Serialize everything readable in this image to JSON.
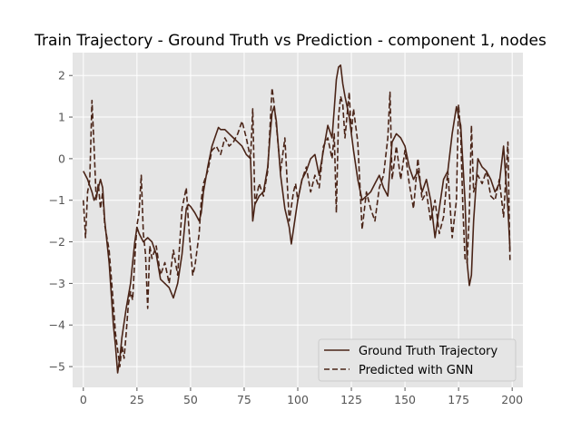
{
  "chart_data": {
    "type": "line",
    "title": "Train Trajectory - Ground Truth vs Prediction - component 1, nodes",
    "xlabel": "",
    "ylabel": "",
    "xlim": [
      -5,
      205
    ],
    "ylim": [
      -5.5,
      2.55
    ],
    "xticks": [
      0,
      25,
      50,
      75,
      100,
      125,
      150,
      175,
      200
    ],
    "yticks": [
      2,
      1,
      0,
      -1,
      -2,
      -3,
      -4,
      -5
    ],
    "grid": true,
    "legend": "lower-right",
    "colors": {
      "line": "#4a2417",
      "plot_bg": "#e5e5e5",
      "grid": "#ffffff"
    },
    "series": [
      {
        "name": "Ground Truth Trajectory",
        "style": "solid",
        "x": [
          0,
          2,
          4,
          5,
          6,
          8,
          9,
          10,
          12,
          14,
          15,
          16,
          17,
          18,
          20,
          22,
          23,
          24,
          25,
          26,
          28,
          30,
          32,
          34,
          36,
          38,
          40,
          42,
          44,
          46,
          48,
          49,
          50,
          52,
          54,
          55,
          56,
          58,
          60,
          62,
          63,
          64,
          66,
          68,
          70,
          72,
          74,
          75,
          76,
          78,
          79,
          80,
          82,
          84,
          86,
          87,
          88,
          89,
          90,
          92,
          94,
          96,
          97,
          98,
          100,
          102,
          104,
          106,
          108,
          110,
          112,
          114,
          116,
          117,
          118,
          119,
          120,
          121,
          122,
          124,
          126,
          128,
          130,
          132,
          134,
          136,
          138,
          140,
          142,
          144,
          146,
          148,
          150,
          152,
          154,
          156,
          158,
          160,
          162,
          164,
          166,
          168,
          170,
          172,
          174,
          176,
          178,
          179,
          180,
          181,
          182,
          184,
          186,
          188,
          190,
          192,
          194,
          196,
          198,
          199
        ],
        "y": [
          -0.3,
          -0.5,
          -0.8,
          -1.0,
          -0.9,
          -0.5,
          -0.7,
          -1.5,
          -2.5,
          -4.0,
          -4.5,
          -5.15,
          -4.8,
          -4.3,
          -3.6,
          -3.0,
          -2.5,
          -2.0,
          -1.65,
          -1.8,
          -2.0,
          -1.9,
          -2.0,
          -2.3,
          -2.9,
          -3.0,
          -3.1,
          -3.35,
          -3.0,
          -2.3,
          -1.2,
          -1.1,
          -1.15,
          -1.3,
          -1.5,
          -1.3,
          -0.8,
          -0.2,
          0.3,
          0.6,
          0.75,
          0.7,
          0.7,
          0.6,
          0.5,
          0.4,
          0.3,
          0.2,
          0.1,
          0.0,
          -1.5,
          -1.1,
          -0.9,
          -0.8,
          -0.2,
          0.5,
          1.1,
          1.25,
          0.9,
          -0.4,
          -1.2,
          -1.65,
          -2.05,
          -1.7,
          -1.0,
          -0.5,
          -0.3,
          0.0,
          0.1,
          -0.4,
          0.2,
          0.8,
          0.5,
          1.2,
          1.9,
          2.2,
          2.25,
          1.8,
          1.5,
          1.0,
          0.2,
          -0.5,
          -1.0,
          -0.9,
          -0.8,
          -0.6,
          -0.4,
          -0.7,
          -0.9,
          0.4,
          0.6,
          0.5,
          0.3,
          -0.2,
          -0.5,
          -0.3,
          -0.8,
          -0.5,
          -1.0,
          -1.9,
          -1.2,
          -0.5,
          -0.3,
          0.6,
          1.25,
          0.8,
          -1.0,
          -2.5,
          -3.05,
          -2.8,
          -1.5,
          0.0,
          -0.2,
          -0.3,
          -0.5,
          -0.8,
          -0.6,
          0.3,
          -1.2,
          -2.2
        ]
      },
      {
        "name": "Predicted with GNN",
        "style": "dashed",
        "x": [
          0,
          1,
          2,
          3,
          4,
          5,
          6,
          7,
          8,
          9,
          10,
          12,
          14,
          15,
          16,
          17,
          18,
          19,
          20,
          21,
          22,
          23,
          24,
          25,
          26,
          27,
          28,
          29,
          30,
          31,
          32,
          34,
          36,
          38,
          40,
          42,
          44,
          46,
          48,
          49,
          50,
          51,
          52,
          54,
          55,
          56,
          58,
          60,
          62,
          64,
          66,
          68,
          70,
          72,
          74,
          76,
          78,
          79,
          80,
          82,
          84,
          86,
          88,
          89,
          90,
          92,
          94,
          96,
          98,
          99,
          100,
          102,
          104,
          106,
          108,
          110,
          112,
          114,
          116,
          117,
          118,
          119,
          120,
          121,
          122,
          124,
          125,
          126,
          128,
          130,
          132,
          134,
          136,
          138,
          140,
          142,
          143,
          144,
          146,
          148,
          150,
          152,
          154,
          156,
          158,
          160,
          162,
          164,
          166,
          168,
          170,
          172,
          174,
          175,
          176,
          177,
          178,
          179,
          180,
          181,
          182,
          184,
          186,
          188,
          190,
          192,
          194,
          196,
          198,
          199
        ],
        "y": [
          -1.0,
          -1.9,
          -0.8,
          -0.5,
          1.4,
          0.3,
          -1.0,
          -0.6,
          -1.2,
          -0.8,
          -1.6,
          -2.2,
          -3.5,
          -4.2,
          -4.6,
          -5.0,
          -4.5,
          -4.8,
          -4.2,
          -3.5,
          -3.2,
          -3.4,
          -2.4,
          -1.6,
          -1.3,
          -0.4,
          -1.8,
          -2.3,
          -3.6,
          -2.1,
          -2.4,
          -2.1,
          -2.8,
          -2.5,
          -3.0,
          -2.2,
          -2.8,
          -1.2,
          -0.7,
          -1.5,
          -2.2,
          -2.8,
          -2.6,
          -1.8,
          -1.0,
          -0.6,
          -0.3,
          0.2,
          0.3,
          0.1,
          0.5,
          0.3,
          0.4,
          0.6,
          0.9,
          0.5,
          0.0,
          1.2,
          -1.1,
          -0.6,
          -0.9,
          -0.3,
          1.7,
          1.3,
          0.8,
          -0.3,
          0.5,
          -1.5,
          -0.8,
          -0.6,
          -1.0,
          -0.5,
          -0.2,
          -0.8,
          -0.4,
          -0.7,
          0.3,
          0.5,
          0.0,
          0.6,
          -1.3,
          1.0,
          1.5,
          1.3,
          0.5,
          1.6,
          0.6,
          1.2,
          0.4,
          -1.7,
          -0.8,
          -1.2,
          -1.5,
          -0.7,
          -0.4,
          0.5,
          1.6,
          -0.5,
          0.3,
          -0.5,
          0.2,
          -0.6,
          -1.2,
          0.0,
          -1.0,
          -0.8,
          -1.5,
          -1.0,
          -1.8,
          -1.4,
          -0.3,
          -1.9,
          -1.0,
          1.3,
          0.6,
          -1.2,
          -2.4,
          -2.5,
          -1.3,
          0.8,
          -0.8,
          -0.4,
          -0.6,
          -0.3,
          -0.9,
          -1.0,
          -0.5,
          -1.4,
          0.4,
          -2.5
        ]
      }
    ]
  }
}
